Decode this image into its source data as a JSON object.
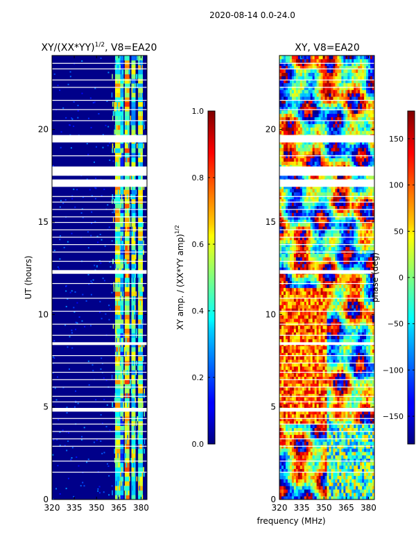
{
  "figure": {
    "suptitle": "2020-08-14 0.0-24.0",
    "shared_xlabel": "frequency (MHz)"
  },
  "chart_data": [
    {
      "type": "heatmap",
      "title": "XY/(XX*YY)^{1/2}, V8=EA20",
      "title_parts": {
        "main": "XY/(XX*YY)",
        "sup": "1/2",
        "tail": ", V8=EA20"
      },
      "xlabel": "",
      "ylabel": "UT (hours)",
      "xlim": [
        320,
        384
      ],
      "ylim": [
        0,
        24
      ],
      "x_ticks": [
        320,
        335,
        350,
        365,
        380
      ],
      "y_ticks": [
        0,
        5,
        10,
        15,
        20
      ],
      "colorbar": {
        "label": "XY amp. / (XX*YY amp)^{1/2}",
        "label_parts": {
          "main": "XY amp. / (XX*YY amp)",
          "sup": "1/2"
        },
        "range": [
          0,
          1
        ],
        "ticks": [
          "0.0",
          "0.2",
          "0.4",
          "0.6",
          "0.8",
          "1.0"
        ],
        "tick_values": [
          0,
          0.2,
          0.4,
          0.6,
          0.8,
          1.0
        ],
        "colormap": "jet"
      },
      "gap_bands_ut": [
        [
          19.3,
          19.7
        ],
        [
          18.0,
          17.5
        ],
        [
          17.3,
          16.9
        ],
        [
          12.4,
          12.2
        ],
        [
          8.5,
          8.35
        ],
        [
          4.95,
          4.75
        ]
      ],
      "active_band_mhz": [
        361,
        381
      ]
    },
    {
      "type": "heatmap",
      "title": "XY, V8=EA20",
      "xlabel": "",
      "ylabel": "",
      "xlim": [
        320,
        384
      ],
      "ylim": [
        0,
        24
      ],
      "x_ticks": [
        320,
        335,
        350,
        365,
        380
      ],
      "y_ticks": [
        0,
        5,
        10,
        15,
        20
      ],
      "colorbar": {
        "label": "phase (deg)",
        "range": [
          -180,
          180
        ],
        "ticks": [
          "−150",
          "−100",
          "−50",
          "0",
          "50",
          "100",
          "150"
        ],
        "tick_values": [
          -150,
          -100,
          -50,
          0,
          50,
          100,
          150
        ],
        "colormap": "jet"
      },
      "gap_bands_ut": [
        [
          19.3,
          19.7
        ],
        [
          18.0,
          17.5
        ],
        [
          17.3,
          16.9
        ],
        [
          12.4,
          12.2
        ],
        [
          8.5,
          8.35
        ],
        [
          4.95,
          4.75
        ]
      ]
    }
  ]
}
